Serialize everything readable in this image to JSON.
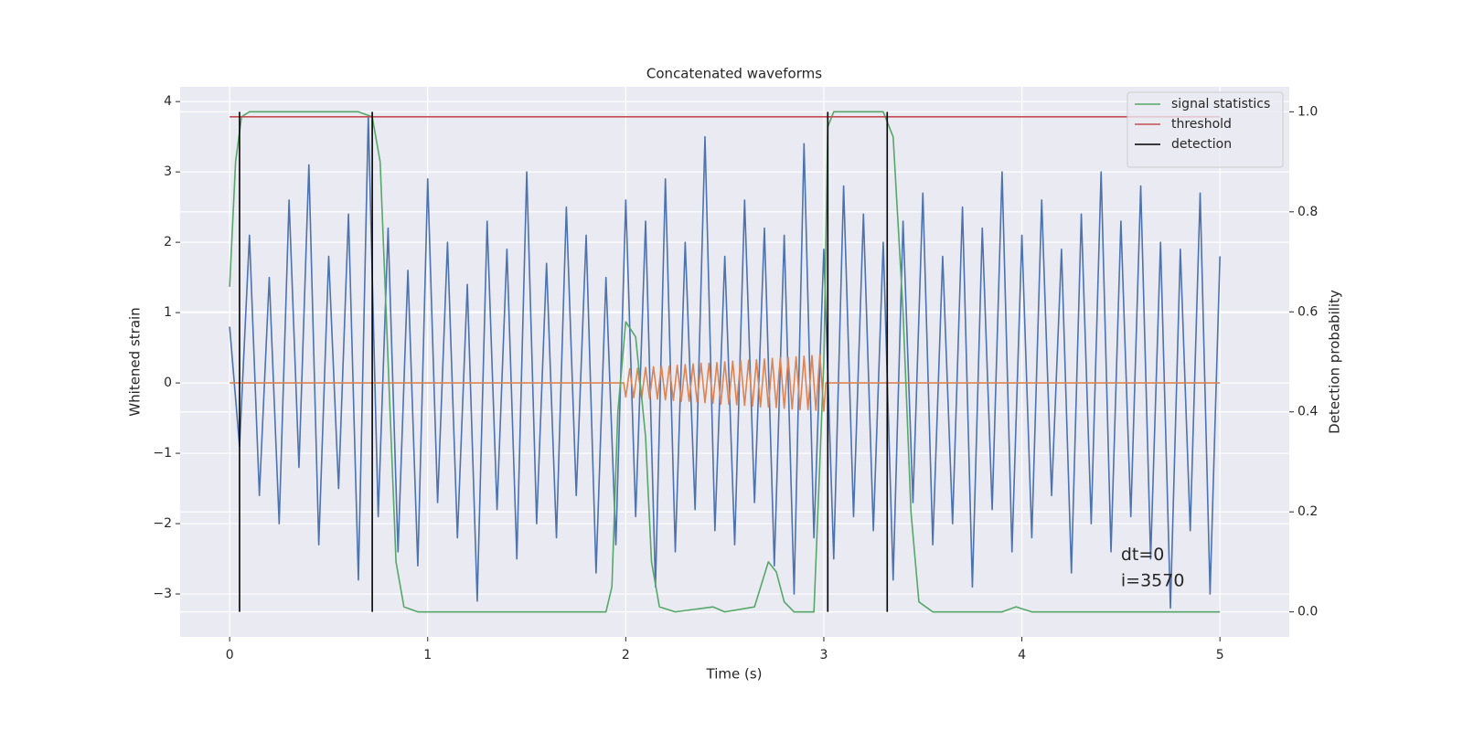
{
  "chart_data": {
    "type": "line",
    "title": "Concatenated waveforms",
    "xlabel": "Time (s)",
    "ylabel": "Whitened strain",
    "y2label": "Detection probability",
    "xlim": [
      -0.25,
      5.35
    ],
    "ylim": [
      -3.61,
      4.21
    ],
    "y2lim": [
      -0.05,
      1.05
    ],
    "xticks": [
      0,
      1,
      2,
      3,
      4,
      5
    ],
    "yticks": [
      {
        "value": -3,
        "label": "−3"
      },
      {
        "value": -2,
        "label": "−2"
      },
      {
        "value": -1,
        "label": "−1"
      },
      0,
      1,
      2,
      3,
      4
    ],
    "y2ticks": [
      {
        "value": 0,
        "label": "0.0"
      },
      0.2,
      0.4,
      0.6,
      0.8,
      {
        "value": 1,
        "label": "1.0"
      }
    ],
    "grid": true,
    "legend": "upper right",
    "series": [
      {
        "color": "#4c72b0",
        "x": [
          0,
          0.05,
          0.1,
          0.15,
          0.2,
          0.25,
          0.3,
          0.35,
          0.4,
          0.45,
          0.5,
          0.55,
          0.6,
          0.65,
          0.7,
          0.75,
          0.8,
          0.85,
          0.9,
          0.95,
          1,
          1.05,
          1.1,
          1.15,
          1.2,
          1.25,
          1.3,
          1.35,
          1.4,
          1.45,
          1.5,
          1.55,
          1.6,
          1.65,
          1.7,
          1.75,
          1.8,
          1.85,
          1.9,
          1.95,
          2,
          2.05,
          2.1,
          2.15,
          2.2,
          2.25,
          2.3,
          2.35,
          2.4,
          2.45,
          2.5,
          2.55,
          2.6,
          2.65,
          2.7,
          2.75,
          2.8,
          2.85,
          2.9,
          2.95,
          3,
          3.05,
          3.1,
          3.15,
          3.2,
          3.25,
          3.3,
          3.35,
          3.4,
          3.45,
          3.5,
          3.55,
          3.6,
          3.65,
          3.7,
          3.75,
          3.8,
          3.85,
          3.9,
          3.95,
          4,
          4.05,
          4.1,
          4.15,
          4.2,
          4.25,
          4.3,
          4.35,
          4.4,
          4.45,
          4.5,
          4.55,
          4.6,
          4.65,
          4.7,
          4.75,
          4.8,
          4.85,
          4.9,
          4.95,
          5
        ],
        "values": [
          0.8,
          -0.9,
          2.1,
          -1.6,
          1.5,
          -2.0,
          2.6,
          -1.2,
          3.1,
          -2.3,
          1.8,
          -1.5,
          2.4,
          -2.8,
          3.8,
          -1.9,
          2.2,
          -2.4,
          1.6,
          -2.6,
          2.9,
          -1.7,
          2.0,
          -2.2,
          1.4,
          -3.1,
          2.3,
          -1.8,
          1.9,
          -2.5,
          3.0,
          -2.0,
          1.7,
          -2.2,
          2.5,
          -1.6,
          2.1,
          -2.7,
          1.5,
          -2.3,
          2.6,
          -1.9,
          2.3,
          -2.9,
          2.9,
          -2.4,
          2.0,
          -1.8,
          3.5,
          -2.1,
          1.8,
          -2.3,
          2.6,
          -1.7,
          2.2,
          -2.6,
          2.1,
          -3.0,
          3.4,
          -2.2,
          1.9,
          -2.5,
          2.8,
          -1.9,
          2.4,
          -2.1,
          2.0,
          -2.8,
          2.3,
          -1.7,
          2.7,
          -2.3,
          1.8,
          -2.0,
          2.5,
          -2.9,
          2.2,
          -1.8,
          3.0,
          -2.4,
          2.1,
          -2.2,
          2.6,
          -1.6,
          1.9,
          -2.7,
          2.4,
          -2.0,
          3.0,
          -2.4,
          2.3,
          -1.9,
          2.8,
          -2.5,
          2.0,
          -3.2,
          1.9,
          -2.1,
          2.7,
          -3.0,
          1.8
        ]
      },
      {
        "color": "#dd8452",
        "x": [
          0,
          1.99,
          2.0,
          2.02,
          2.04,
          2.06,
          2.08,
          2.1,
          2.12,
          2.14,
          2.16,
          2.18,
          2.2,
          2.22,
          2.24,
          2.26,
          2.28,
          2.3,
          2.32,
          2.34,
          2.36,
          2.38,
          2.4,
          2.42,
          2.44,
          2.46,
          2.48,
          2.5,
          2.52,
          2.54,
          2.56,
          2.58,
          2.6,
          2.62,
          2.64,
          2.66,
          2.68,
          2.7,
          2.72,
          2.74,
          2.76,
          2.78,
          2.8,
          2.82,
          2.84,
          2.86,
          2.88,
          2.9,
          2.92,
          2.94,
          2.96,
          2.98,
          3.0,
          3.01,
          5
        ],
        "values": [
          0,
          0,
          -0.2,
          0.2,
          -0.21,
          0.21,
          -0.22,
          0.22,
          -0.22,
          0.23,
          -0.23,
          0.24,
          -0.24,
          0.24,
          -0.25,
          0.25,
          -0.26,
          0.26,
          -0.26,
          0.27,
          -0.27,
          0.28,
          -0.28,
          0.28,
          -0.29,
          0.29,
          -0.3,
          0.3,
          -0.3,
          0.31,
          -0.31,
          0.32,
          -0.32,
          0.32,
          -0.33,
          0.33,
          -0.34,
          0.34,
          -0.34,
          0.35,
          -0.35,
          0.36,
          -0.36,
          0.36,
          -0.37,
          0.37,
          -0.38,
          0.38,
          -0.38,
          0.39,
          -0.39,
          0.4,
          -0.4,
          0,
          0
        ]
      },
      {
        "name": "signal statistics",
        "color": "#55a868",
        "axis": "y2",
        "x": [
          0,
          0.03,
          0.06,
          0.1,
          0.65,
          0.72,
          0.76,
          0.8,
          0.84,
          0.88,
          0.95,
          1.9,
          1.93,
          1.96,
          2.0,
          2.05,
          2.1,
          2.13,
          2.17,
          2.25,
          2.44,
          2.5,
          2.65,
          2.72,
          2.76,
          2.8,
          2.85,
          2.95,
          3.0,
          3.02,
          3.05,
          3.3,
          3.35,
          3.4,
          3.44,
          3.48,
          3.55,
          3.9,
          3.97,
          4.05,
          5
        ],
        "values": [
          0.65,
          0.9,
          0.99,
          1.0,
          1.0,
          0.99,
          0.9,
          0.5,
          0.1,
          0.01,
          0,
          0,
          0.05,
          0.4,
          0.58,
          0.55,
          0.35,
          0.1,
          0.01,
          0,
          0.01,
          0,
          0.01,
          0.1,
          0.08,
          0.02,
          0,
          0,
          0.5,
          0.97,
          1.0,
          1.0,
          0.95,
          0.6,
          0.2,
          0.02,
          0,
          0,
          0.01,
          0,
          0
        ]
      },
      {
        "name": "threshold",
        "color": "#c44e52",
        "axis": "y2",
        "x": [
          0,
          5
        ],
        "values": [
          0.99,
          0.99
        ]
      },
      {
        "name": "detection",
        "color": "#000000",
        "axis": "y2",
        "x": [
          0.05,
          0.05,
          null,
          0.72,
          0.72,
          null,
          3.02,
          3.02,
          null,
          3.32,
          3.32
        ],
        "values": [
          0,
          1,
          null,
          0,
          1,
          null,
          0,
          1,
          null,
          0,
          1
        ]
      }
    ],
    "annotations": [
      {
        "text": "dt=0",
        "x": 4.5,
        "y": -2.45
      },
      {
        "text": "i=3570",
        "x": 4.5,
        "y": -2.82
      }
    ]
  }
}
